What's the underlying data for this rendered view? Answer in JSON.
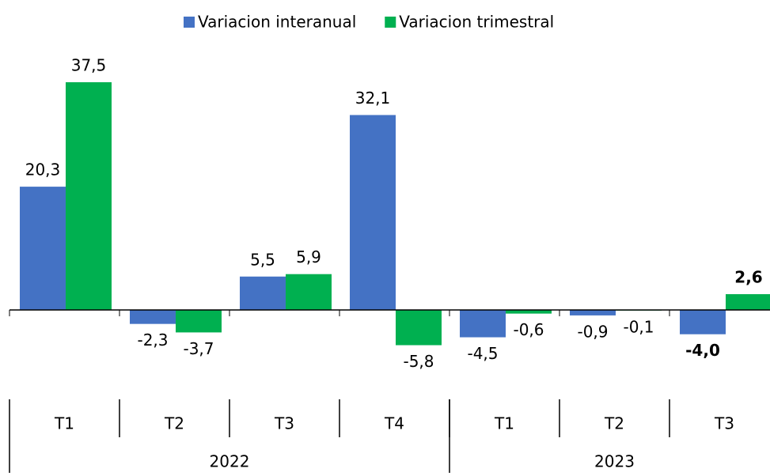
{
  "chart_data": {
    "type": "bar",
    "groups": [
      {
        "name": "2022",
        "categories": [
          "T1",
          "T2",
          "T3",
          "T4"
        ]
      },
      {
        "name": "2023",
        "categories": [
          "T1",
          "T2",
          "T3"
        ]
      }
    ],
    "series": [
      {
        "name": "Variacion interanual",
        "color": "#4472c4",
        "values": [
          20.3,
          -2.3,
          5.5,
          32.1,
          -4.5,
          -0.9,
          -4.0
        ],
        "value_labels": [
          "20,3",
          "-2,3",
          "5,5",
          "32,1",
          "-4,5",
          "-0,9",
          "-4,0"
        ]
      },
      {
        "name": "Variacion trimestral",
        "color": "#00b050",
        "values": [
          37.5,
          -3.7,
          5.9,
          -5.8,
          -0.6,
          -0.1,
          2.6
        ],
        "value_labels": [
          "37,5",
          "-3,7",
          "5,9",
          "-5,8",
          "-0,6",
          "-0,1",
          "2,6"
        ]
      }
    ],
    "legend": "top"
  }
}
